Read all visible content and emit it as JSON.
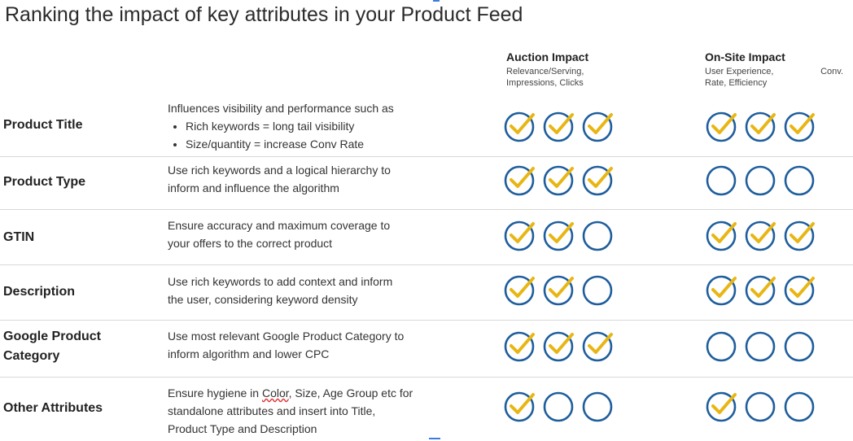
{
  "title": "Ranking the impact of key attributes in your Product Feed",
  "columns": {
    "auction": {
      "heading": "Auction Impact",
      "sub": [
        "Relevance/Serving,",
        "Impressions, Clicks"
      ]
    },
    "onsite": {
      "heading": "On-Site Impact",
      "sub_line1": "User Experience,",
      "sub_conv": "Conv.",
      "sub_line2": "Rate, Efficiency"
    }
  },
  "colors": {
    "circle": "#1f5e9c",
    "check": "#e8b614"
  },
  "rows": [
    {
      "attribute": "Product Title",
      "description_intro": "Influences visibility and performance such as",
      "bullets": [
        "Rich keywords = long tail visibility",
        "Size/quantity = increase Conv Rate"
      ],
      "auction": [
        true,
        true,
        true
      ],
      "onsite": [
        true,
        true,
        true
      ]
    },
    {
      "attribute": "Product Type",
      "description": [
        "Use rich keywords and a logical hierarchy to",
        "inform and influence the algorithm"
      ],
      "auction": [
        true,
        true,
        true
      ],
      "onsite": [
        false,
        false,
        false
      ]
    },
    {
      "attribute": "GTIN",
      "description": [
        "Ensure accuracy and maximum coverage to",
        "your offers to the correct product"
      ],
      "auction": [
        true,
        true,
        false
      ],
      "onsite": [
        true,
        true,
        true
      ]
    },
    {
      "attribute": "Description",
      "description": [
        "Use rich keywords to add context and inform",
        "the user, considering keyword density"
      ],
      "auction": [
        true,
        true,
        false
      ],
      "onsite": [
        true,
        true,
        true
      ]
    },
    {
      "attribute_lines": [
        "Google Product",
        "Category"
      ],
      "description": [
        "Use most relevant Google Product Category to",
        "inform algorithm and lower CPC"
      ],
      "auction": [
        true,
        true,
        true
      ],
      "onsite": [
        false,
        false,
        false
      ]
    },
    {
      "attribute": "Other Attributes",
      "description_parts": [
        "Ensure hygiene in ",
        "Color",
        ", Size, Age Group etc for"
      ],
      "description_rest": [
        "standalone attributes and insert into Title,",
        "Product Type and Description"
      ],
      "auction": [
        true,
        false,
        false
      ],
      "onsite": [
        true,
        false,
        false
      ]
    }
  ]
}
